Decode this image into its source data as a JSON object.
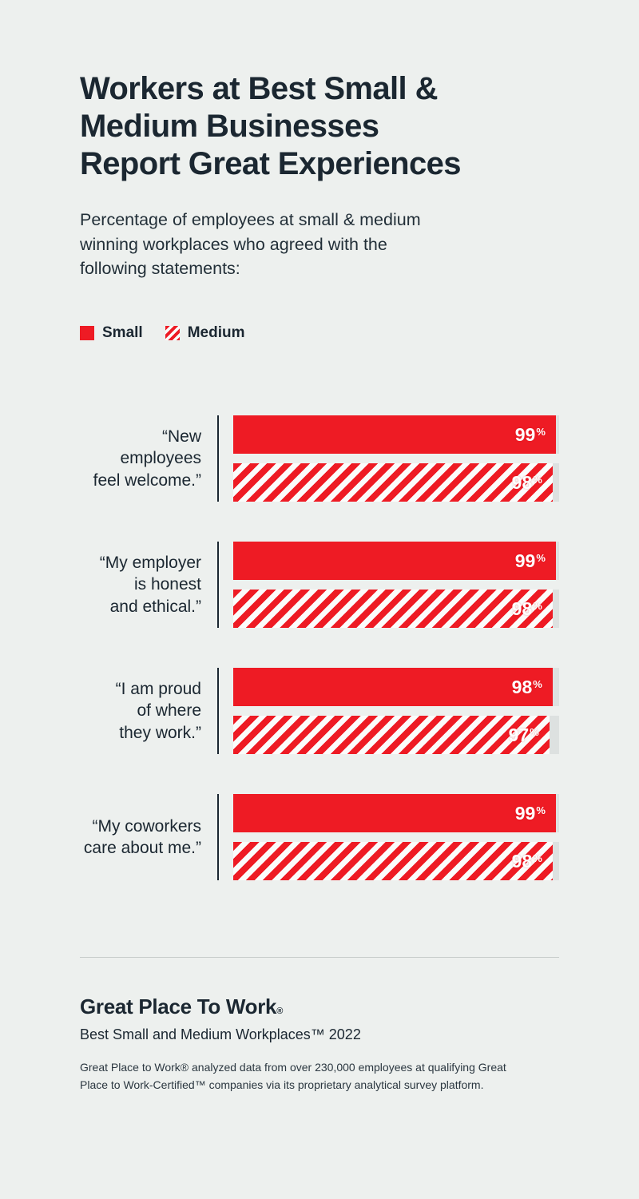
{
  "theme": {
    "background": "#edf0ee",
    "red": "#ee1b24",
    "text": "#1b2731",
    "track": "#dde1e0",
    "hatch_gap": "#fbfcfb",
    "divider": "#c8cdcb"
  },
  "header": {
    "title": "Workers at Best Small &\nMedium Businesses\nReport Great Experiences",
    "subtitle": "Percentage of employees at small & medium\nwinning workplaces who agreed with the\nfollowing statements:"
  },
  "chart_data": {
    "type": "bar",
    "orientation": "horizontal",
    "title": "Workers at Best Small & Medium Businesses Report Great Experiences",
    "categories": [
      "“New employees\nfeel welcome.”",
      "“My employer\nis honest\nand ethical.”",
      "“I am proud\nof where\nthey work.”",
      "“My coworkers\ncare about me.”"
    ],
    "series": [
      {
        "name": "Small",
        "pattern": "solid",
        "values": [
          99,
          99,
          98,
          99
        ]
      },
      {
        "name": "Medium",
        "pattern": "diagonal-hatch",
        "values": [
          98,
          98,
          97,
          98
        ]
      }
    ],
    "value_suffix": "%",
    "xlim": [
      0,
      100
    ],
    "grid": false,
    "legend_position": "top-left"
  },
  "footer": {
    "logo_text": "Great Place To Work",
    "logo_mark": "®",
    "edition": "Best Small and Medium Workplaces™ 2022",
    "footnote": "Great Place to Work® analyzed data from over 230,000 employees at qualifying Great Place to Work-Certified™ companies via its proprietary analytical survey platform."
  }
}
